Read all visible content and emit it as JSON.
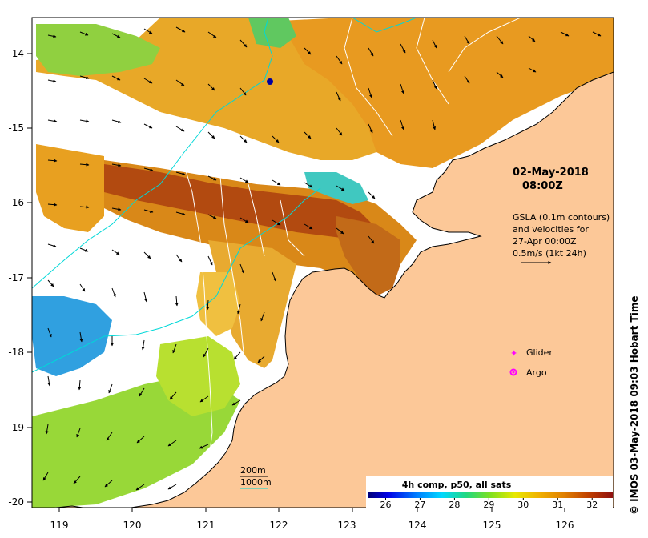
{
  "map": {
    "datetime": {
      "date": "02-May-2018",
      "time": "08:00Z"
    },
    "gsla_info": [
      "GSLA (0.1m contours)",
      "and velocities for",
      "27-Apr 00:00Z",
      "0.5m/s (1kt 24h)"
    ],
    "legend": [
      {
        "label": "Glider",
        "color": "#ff00ff"
      },
      {
        "label": "Argo",
        "color": "#ff00ff"
      }
    ],
    "bathymetry": {
      "contour_200m": "200m",
      "contour_1000m": "1000m",
      "contour_color": "#00d8d8"
    },
    "colorbar": {
      "title": "4h comp, p50, all sats",
      "ticks": [
        "26",
        "27",
        "28",
        "29",
        "30",
        "31",
        "32"
      ],
      "min": 25.5,
      "max": 32.6
    },
    "credit": "© IMOS 03-May-2018 09:03 Hobart Time",
    "x_ticks": [
      "119",
      "120",
      "121",
      "122",
      "123",
      "124",
      "125",
      "126"
    ],
    "y_ticks": [
      "-14",
      "-15",
      "-16",
      "-17",
      "-18",
      "-19",
      "-20"
    ],
    "colors": {
      "land": "#fcc898",
      "coast": "#000000",
      "cloud": "#ffffff"
    }
  }
}
